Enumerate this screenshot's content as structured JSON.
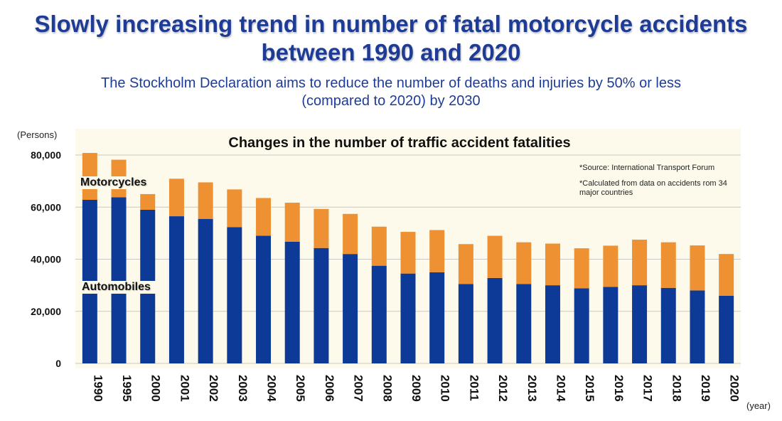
{
  "header": {
    "title_line1": "Slowly increasing trend in number of fatal motorcycle accidents",
    "title_line2": "between 1990 and 2020",
    "subtitle_line1": "The Stockholm Declaration aims to reduce the number of deaths and injuries by 50% or less",
    "subtitle_line2": "(compared to 2020) by 2030"
  },
  "notes": {
    "source": "*Source: International Transport Forum",
    "calc": "*Calculated from data on accidents rom 34 major countries"
  },
  "colors": {
    "automobiles": "#0d3a96",
    "motorcycles": "#ee9132",
    "panel": "#fdfaeb",
    "grid": "#c8c8c8"
  },
  "chart_data": {
    "type": "bar",
    "stacked": true,
    "title": "Changes in the number of traffic accident fatalities",
    "ylabel": "(Persons)",
    "xlabel": "(year)",
    "ylim": [
      0,
      80000
    ],
    "yticks": [
      0,
      20000,
      40000,
      60000,
      80000
    ],
    "ytick_labels": [
      "0",
      "20,000",
      "40,000",
      "60,000",
      "80,000"
    ],
    "grid": true,
    "categories": [
      "1990",
      "1995",
      "2000",
      "2001",
      "2002",
      "2003",
      "2004",
      "2005",
      "2006",
      "2007",
      "2008",
      "2009",
      "2010",
      "2011",
      "2012",
      "2013",
      "2014",
      "2015",
      "2016",
      "2017",
      "2018",
      "2019",
      "2020"
    ],
    "series": [
      {
        "name": "Automobiles",
        "values": [
          62800,
          63800,
          59000,
          56500,
          55500,
          52300,
          49000,
          46700,
          44300,
          42000,
          37500,
          34500,
          35000,
          30500,
          32800,
          30500,
          30000,
          28800,
          29400,
          30000,
          29000,
          28000,
          26000
        ]
      },
      {
        "name": "Motorcycles",
        "values": [
          18000,
          14400,
          6000,
          14400,
          14000,
          14500,
          14500,
          15000,
          15000,
          15400,
          15000,
          16000,
          16200,
          15300,
          16200,
          16000,
          16000,
          15400,
          15800,
          17500,
          17500,
          17300,
          16000
        ]
      }
    ]
  }
}
